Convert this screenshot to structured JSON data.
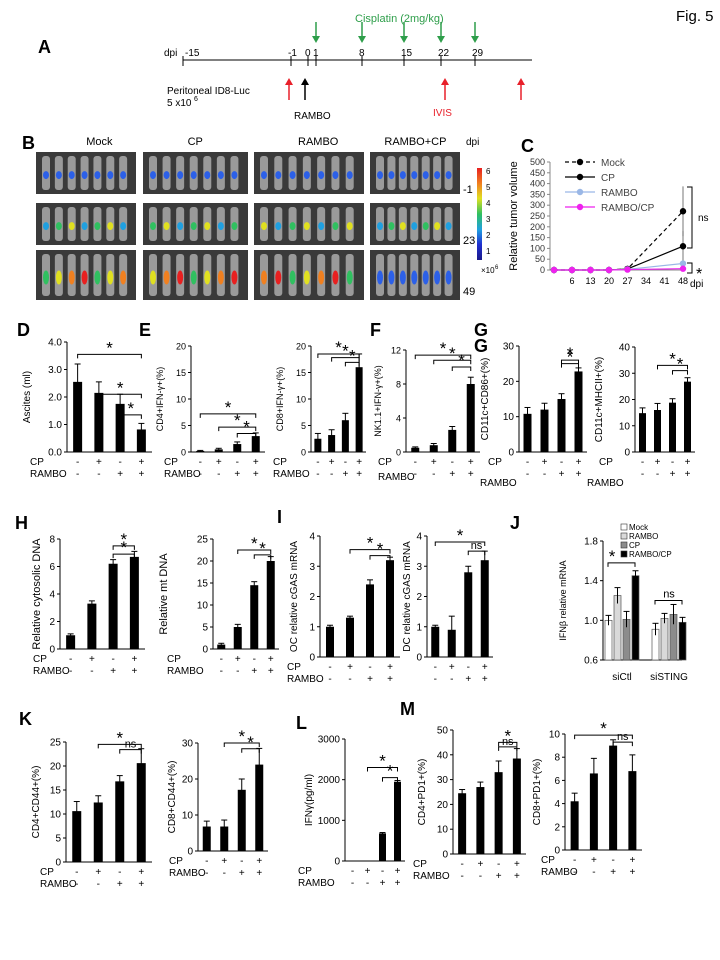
{
  "figure_label": "Fig. 5",
  "timeline": {
    "panel": "A",
    "dpi_prefix": "dpi",
    "ticks": [
      "-15",
      "-1",
      "0",
      "1",
      "8",
      "15",
      "22",
      "29"
    ],
    "drug_label": "Cisplatin (2mg/kg)",
    "inoculation_label_1": "Peritoneal ID8-Luc",
    "inoculation_label_2": "5 x10",
    "inoculation_exp": "6",
    "rambo_label": "RAMBO",
    "ivis_label": "IVIS",
    "colors": {
      "cisplatin": "#2e9e4a",
      "ivis": "#e8202a",
      "axis": "#000000"
    }
  },
  "imaging": {
    "panel": "B",
    "columns": [
      "Mock",
      "CP",
      "RAMBO",
      "RAMBO+CP"
    ],
    "dpi_header": "dpi",
    "rows": [
      "-1",
      "23",
      "49"
    ],
    "colorbar_ticks": [
      "6",
      "5",
      "4",
      "3",
      "2",
      "1"
    ],
    "colorbar_unit": "×10",
    "colorbar_unit_exp": "6"
  },
  "chart_data": [
    {
      "panel": "C",
      "type": "line",
      "ylabel": "Relative  tumor volume",
      "xlabel": "dpi",
      "x": [
        6,
        13,
        20,
        27,
        34,
        41,
        48
      ],
      "yticks": [
        0,
        50,
        100,
        150,
        200,
        250,
        300,
        350,
        400,
        450,
        500
      ],
      "ylim": [
        0,
        500
      ],
      "series": [
        {
          "name": "Mock",
          "color": "#000000",
          "dash": true,
          "values": [
            0,
            0,
            0,
            5,
            null,
            null,
            272
          ],
          "error": [
            0,
            0,
            0,
            3,
            null,
            null,
            115
          ]
        },
        {
          "name": "CP",
          "color": "#000000",
          "values": [
            0,
            0,
            0,
            5,
            null,
            null,
            110
          ],
          "error": [
            0,
            0,
            0,
            3,
            null,
            null,
            70
          ]
        },
        {
          "name": "RAMBO",
          "color": "#9ab7e6",
          "values": [
            0,
            0,
            0,
            3,
            null,
            null,
            30
          ],
          "error": [
            0,
            0,
            0,
            2,
            null,
            null,
            8
          ]
        },
        {
          "name": "RAMBO/CP",
          "color": "#ee22ee",
          "values": [
            0,
            0,
            0,
            2,
            null,
            null,
            6
          ],
          "error": [
            0,
            0,
            0,
            1,
            null,
            null,
            3
          ]
        }
      ],
      "annotations": [
        "ns",
        "*"
      ]
    },
    {
      "panel": "D",
      "type": "bar",
      "ylabel": "Ascites (ml)",
      "ylim": [
        0,
        4
      ],
      "yticks": [
        "0.0",
        "1.0",
        "2.0",
        "3.0",
        "4.0"
      ],
      "values": [
        2.55,
        2.15,
        1.75,
        0.82
      ],
      "error": [
        0.65,
        0.4,
        0.35,
        0.22
      ],
      "annotations": [
        "*",
        "*",
        "*"
      ]
    },
    {
      "panel": "E",
      "type": "bar",
      "ylabel": "CD4+IFN-γ+(%)",
      "ylim": [
        0,
        20
      ],
      "yticks": [
        "0",
        "5",
        "10",
        "15",
        "20"
      ],
      "values": [
        0.2,
        0.5,
        1.5,
        3.0
      ],
      "error": [
        0.1,
        0.2,
        0.4,
        0.6
      ],
      "annotations": [
        "*",
        "*",
        "*"
      ]
    },
    {
      "panel": "E2",
      "type": "bar",
      "ylabel": "CD8+IFN-γ+(%)",
      "ylim": [
        0,
        20
      ],
      "yticks": [
        "0",
        "5",
        "10",
        "15",
        "20"
      ],
      "values": [
        2.5,
        3.2,
        6.0,
        16.0
      ],
      "error": [
        1.0,
        1.0,
        1.3,
        2.5
      ],
      "annotations": [
        "*",
        "*",
        "*"
      ]
    },
    {
      "panel": "F",
      "type": "bar",
      "ylabel": "NK1.1+IFN-γ+(%)",
      "ylim": [
        0,
        12
      ],
      "yticks": [
        "0",
        "4",
        "8",
        "12"
      ],
      "values": [
        0.5,
        0.8,
        2.6,
        8.0
      ],
      "error": [
        0.1,
        0.2,
        0.4,
        0.8
      ],
      "annotations": [
        "*",
        "*",
        "*"
      ]
    },
    {
      "panel": "G",
      "type": "bar",
      "ylabel": "CD11c+CD86+(%)",
      "ylim": [
        0,
        30
      ],
      "yticks": [
        "0",
        "10",
        "20",
        "30"
      ],
      "values": [
        10.8,
        12.0,
        15.0,
        22.8
      ],
      "error": [
        1.8,
        1.8,
        1.5,
        1.0
      ],
      "annotations": [
        "*",
        "*"
      ]
    },
    {
      "panel": "G2",
      "type": "bar",
      "ylabel": "CD11c+MHCII+(%)",
      "ylim": [
        0,
        40
      ],
      "yticks": [
        "0",
        "10",
        "20",
        "30",
        "40"
      ],
      "values": [
        14.8,
        16.0,
        18.8,
        26.8
      ],
      "error": [
        2.0,
        2.5,
        1.5,
        1.5
      ],
      "annotations": [
        "*",
        "*"
      ]
    },
    {
      "panel": "H",
      "type": "bar",
      "ylabel": "Relative  cytosolic DNA",
      "ylim": [
        0,
        8
      ],
      "yticks": [
        "0",
        "2",
        "4",
        "6",
        "8"
      ],
      "values": [
        1.0,
        3.3,
        6.2,
        6.7
      ],
      "error": [
        0.1,
        0.2,
        0.3,
        0.4
      ],
      "annotations": [
        "*",
        "*"
      ]
    },
    {
      "panel": "H2",
      "type": "bar",
      "ylabel": "Relative  mt DNA",
      "ylim": [
        0,
        25
      ],
      "yticks": [
        "0",
        "5",
        "10",
        "15",
        "20",
        "25"
      ],
      "values": [
        1.0,
        5.0,
        14.5,
        20.0
      ],
      "error": [
        0.3,
        0.6,
        0.8,
        1.0
      ],
      "annotations": [
        "*",
        "*"
      ]
    },
    {
      "panel": "I",
      "type": "bar",
      "ylabel": "OC relative cGAS mRNA",
      "ylim": [
        0,
        4
      ],
      "yticks": [
        "0",
        "1",
        "2",
        "3",
        "4"
      ],
      "values": [
        1.0,
        1.3,
        2.4,
        3.2
      ],
      "error": [
        0.05,
        0.05,
        0.15,
        0.1
      ],
      "annotations": [
        "*",
        "*"
      ]
    },
    {
      "panel": "I2",
      "type": "bar",
      "ylabel": "DC relative cGAS mRNA",
      "ylim": [
        0,
        4
      ],
      "yticks": [
        "0",
        "1",
        "2",
        "3",
        "4"
      ],
      "values": [
        1.0,
        0.9,
        2.8,
        3.2
      ],
      "error": [
        0.05,
        0.45,
        0.2,
        0.3
      ],
      "annotations": [
        "*",
        "ns"
      ]
    },
    {
      "panel": "J",
      "type": "bar",
      "ylabel": "IFNβ relative mRNA",
      "ylim": [
        0.6,
        1.8
      ],
      "yticks": [
        "0.6",
        "1.0",
        "1.4",
        "1.8"
      ],
      "categories": [
        "siCtl",
        "siSTING"
      ],
      "series": [
        {
          "name": "Mock",
          "color": "#ffffff",
          "values": [
            1.0,
            0.91
          ],
          "error": [
            0.05,
            0.06
          ]
        },
        {
          "name": "RAMBO",
          "color": "#d9d9d9",
          "values": [
            1.25,
            1.02
          ],
          "error": [
            0.08,
            0.05
          ]
        },
        {
          "name": "CP",
          "color": "#8c8c8c",
          "values": [
            1.01,
            1.06
          ],
          "error": [
            0.08,
            0.1
          ]
        },
        {
          "name": "RAMBO/CP",
          "color": "#000000",
          "values": [
            1.45,
            0.98
          ],
          "error": [
            0.05,
            0.05
          ]
        }
      ],
      "annotations": [
        "*",
        "ns"
      ]
    },
    {
      "panel": "K",
      "type": "bar",
      "ylabel": "CD4+CD44+(%)",
      "ylim": [
        0,
        25
      ],
      "yticks": [
        "0",
        "5",
        "10",
        "15",
        "20",
        "25"
      ],
      "values": [
        10.6,
        12.4,
        16.8,
        20.6
      ],
      "error": [
        2.0,
        1.4,
        1.2,
        3.0
      ],
      "annotations": [
        "*",
        "ns"
      ]
    },
    {
      "panel": "K2",
      "type": "bar",
      "ylabel": "CD8+CD44+(%)",
      "ylim": [
        0,
        30
      ],
      "yticks": [
        "0",
        "10",
        "20",
        "30"
      ],
      "values": [
        6.8,
        6.8,
        17.0,
        24.0
      ],
      "error": [
        1.5,
        1.8,
        3.0,
        4.5
      ],
      "annotations": [
        "*",
        "*"
      ]
    },
    {
      "panel": "L",
      "type": "bar",
      "ylabel": "IFNγ(pg/ml)",
      "ylim": [
        0,
        3000
      ],
      "yticks": [
        "0",
        "1000",
        "2000",
        "3000"
      ],
      "values": [
        0,
        0,
        680,
        1950
      ],
      "error": [
        0,
        0,
        20,
        30
      ],
      "annotations": [
        "*",
        "*"
      ]
    },
    {
      "panel": "M",
      "type": "bar",
      "ylabel": "CD4+PD1+(%)",
      "ylim": [
        0,
        50
      ],
      "yticks": [
        "0",
        "10",
        "20",
        "30",
        "40",
        "50"
      ],
      "values": [
        24.5,
        27.0,
        33.0,
        38.5
      ],
      "error": [
        1.5,
        2.0,
        4.5,
        4.0
      ],
      "annotations": [
        "*",
        "ns"
      ]
    },
    {
      "panel": "M2",
      "type": "bar",
      "ylabel": "CD8+PD1+(%)",
      "ylim": [
        0,
        10
      ],
      "yticks": [
        "0",
        "2",
        "4",
        "6",
        "8",
        "10"
      ],
      "values": [
        4.2,
        6.6,
        9.0,
        6.8
      ],
      "error": [
        0.7,
        1.3,
        0.5,
        1.4
      ],
      "annotations": [
        "*",
        "ns"
      ]
    }
  ],
  "treatment_rows": {
    "cp_label": "CP",
    "rambo_label": "RAMBO",
    "cp": [
      "-",
      "+",
      "-",
      "+"
    ],
    "rambo": [
      "-",
      "-",
      "+",
      "+"
    ]
  }
}
